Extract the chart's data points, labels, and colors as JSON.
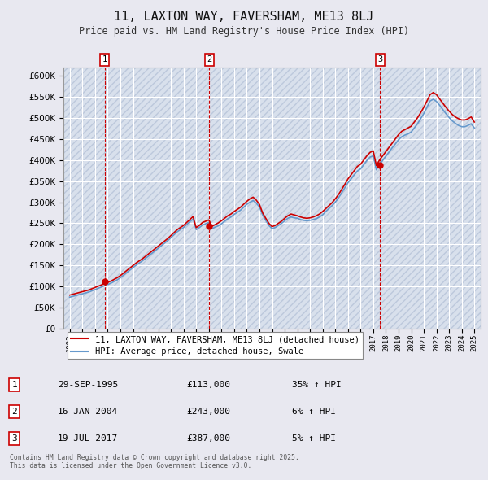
{
  "title": "11, LAXTON WAY, FAVERSHAM, ME13 8LJ",
  "subtitle": "Price paid vs. HM Land Registry's House Price Index (HPI)",
  "bg_color": "#e8e8f0",
  "plot_bg_color": "#d8e0ec",
  "grid_color": "#ffffff",
  "hatch_color": "#bcc8dc",
  "red_line_color": "#cc0000",
  "blue_line_color": "#6699cc",
  "ylim": [
    0,
    620000
  ],
  "yticks": [
    0,
    50000,
    100000,
    150000,
    200000,
    250000,
    300000,
    350000,
    400000,
    450000,
    500000,
    550000,
    600000
  ],
  "xlim_start": 1992.5,
  "xlim_end": 2025.5,
  "xticks": [
    1993,
    1994,
    1995,
    1996,
    1997,
    1998,
    1999,
    2000,
    2001,
    2002,
    2003,
    2004,
    2005,
    2006,
    2007,
    2008,
    2009,
    2010,
    2011,
    2012,
    2013,
    2014,
    2015,
    2016,
    2017,
    2018,
    2019,
    2020,
    2021,
    2022,
    2023,
    2024,
    2025
  ],
  "sale_dates": [
    1995.75,
    2004.04,
    2017.54
  ],
  "sale_prices": [
    113000,
    243000,
    387000
  ],
  "sale_labels": [
    "1",
    "2",
    "3"
  ],
  "vline_color": "#cc0000",
  "legend_items": [
    "11, LAXTON WAY, FAVERSHAM, ME13 8LJ (detached house)",
    "HPI: Average price, detached house, Swale"
  ],
  "table_rows": [
    [
      "1",
      "29-SEP-1995",
      "£113,000",
      "35% ↑ HPI"
    ],
    [
      "2",
      "16-JAN-2004",
      "£243,000",
      "6% ↑ HPI"
    ],
    [
      "3",
      "19-JUL-2017",
      "£387,000",
      "5% ↑ HPI"
    ]
  ],
  "footer": "Contains HM Land Registry data © Crown copyright and database right 2025.\nThis data is licensed under the Open Government Licence v3.0.",
  "red_hpi_x": [
    1993,
    1993.25,
    1993.5,
    1993.75,
    1994,
    1994.25,
    1994.5,
    1994.75,
    1995,
    1995.25,
    1995.5,
    1995.75,
    1996,
    1996.25,
    1996.5,
    1996.75,
    1997,
    1997.25,
    1997.5,
    1997.75,
    1998,
    1998.25,
    1998.5,
    1998.75,
    1999,
    1999.25,
    1999.5,
    1999.75,
    2000,
    2000.25,
    2000.5,
    2000.75,
    2001,
    2001.25,
    2001.5,
    2001.75,
    2002,
    2002.25,
    2002.5,
    2002.75,
    2003,
    2003.25,
    2003.5,
    2003.75,
    2004,
    2004.25,
    2004.5,
    2004.75,
    2005,
    2005.25,
    2005.5,
    2005.75,
    2006,
    2006.25,
    2006.5,
    2006.75,
    2007,
    2007.25,
    2007.5,
    2007.75,
    2008,
    2008.25,
    2008.5,
    2008.75,
    2009,
    2009.25,
    2009.5,
    2009.75,
    2010,
    2010.25,
    2010.5,
    2010.75,
    2011,
    2011.25,
    2011.5,
    2011.75,
    2012,
    2012.25,
    2012.5,
    2012.75,
    2013,
    2013.25,
    2013.5,
    2013.75,
    2014,
    2014.25,
    2014.5,
    2014.75,
    2015,
    2015.25,
    2015.5,
    2015.75,
    2016,
    2016.25,
    2016.5,
    2016.75,
    2017,
    2017.25,
    2017.5,
    2017.75,
    2018,
    2018.25,
    2018.5,
    2018.75,
    2019,
    2019.25,
    2019.5,
    2019.75,
    2020,
    2020.25,
    2020.5,
    2020.75,
    2021,
    2021.25,
    2021.5,
    2021.75,
    2022,
    2022.25,
    2022.5,
    2022.75,
    2023,
    2023.25,
    2023.5,
    2023.75,
    2024,
    2024.25,
    2024.5,
    2024.75,
    2025
  ],
  "red_hpi_y": [
    80000,
    82000,
    84000,
    86000,
    88000,
    90000,
    92000,
    95000,
    98000,
    101000,
    104000,
    107000,
    110000,
    113000,
    117000,
    121000,
    126000,
    132000,
    138000,
    144000,
    150000,
    156000,
    161000,
    166000,
    172000,
    178000,
    184000,
    190000,
    196000,
    202000,
    208000,
    214000,
    221000,
    228000,
    235000,
    240000,
    245000,
    252000,
    259000,
    266000,
    240000,
    245000,
    252000,
    255000,
    258000,
    243000,
    247000,
    251000,
    256000,
    262000,
    268000,
    272000,
    278000,
    283000,
    288000,
    295000,
    302000,
    308000,
    312000,
    305000,
    295000,
    275000,
    262000,
    250000,
    242000,
    245000,
    250000,
    255000,
    262000,
    268000,
    272000,
    270000,
    268000,
    265000,
    263000,
    262000,
    263000,
    265000,
    268000,
    272000,
    278000,
    285000,
    292000,
    299000,
    308000,
    318000,
    330000,
    342000,
    355000,
    365000,
    375000,
    385000,
    390000,
    400000,
    410000,
    418000,
    422000,
    387000,
    400000,
    410000,
    420000,
    430000,
    440000,
    450000,
    460000,
    468000,
    472000,
    476000,
    480000,
    490000,
    500000,
    512000,
    525000,
    540000,
    555000,
    560000,
    555000,
    545000,
    535000,
    525000,
    516000,
    508000,
    502000,
    498000,
    495000,
    495000,
    498000,
    502000,
    490000
  ],
  "blue_hpi_x": [
    1993,
    1993.25,
    1993.5,
    1993.75,
    1994,
    1994.25,
    1994.5,
    1994.75,
    1995,
    1995.25,
    1995.5,
    1995.75,
    1996,
    1996.25,
    1996.5,
    1996.75,
    1997,
    1997.25,
    1997.5,
    1997.75,
    1998,
    1998.25,
    1998.5,
    1998.75,
    1999,
    1999.25,
    1999.5,
    1999.75,
    2000,
    2000.25,
    2000.5,
    2000.75,
    2001,
    2001.25,
    2001.5,
    2001.75,
    2002,
    2002.25,
    2002.5,
    2002.75,
    2003,
    2003.25,
    2003.5,
    2003.75,
    2004,
    2004.25,
    2004.5,
    2004.75,
    2005,
    2005.25,
    2005.5,
    2005.75,
    2006,
    2006.25,
    2006.5,
    2006.75,
    2007,
    2007.25,
    2007.5,
    2007.75,
    2008,
    2008.25,
    2008.5,
    2008.75,
    2009,
    2009.25,
    2009.5,
    2009.75,
    2010,
    2010.25,
    2010.5,
    2010.75,
    2011,
    2011.25,
    2011.5,
    2011.75,
    2012,
    2012.25,
    2012.5,
    2012.75,
    2013,
    2013.25,
    2013.5,
    2013.75,
    2014,
    2014.25,
    2014.5,
    2014.75,
    2015,
    2015.25,
    2015.5,
    2015.75,
    2016,
    2016.25,
    2016.5,
    2016.75,
    2017,
    2017.25,
    2017.5,
    2017.75,
    2018,
    2018.25,
    2018.5,
    2018.75,
    2019,
    2019.25,
    2019.5,
    2019.75,
    2020,
    2020.25,
    2020.5,
    2020.75,
    2021,
    2021.25,
    2021.5,
    2021.75,
    2022,
    2022.25,
    2022.5,
    2022.75,
    2023,
    2023.25,
    2023.5,
    2023.75,
    2024,
    2024.25,
    2024.5,
    2024.75,
    2025
  ],
  "blue_hpi_y": [
    75000,
    77000,
    79000,
    81000,
    83000,
    85000,
    87000,
    90000,
    93000,
    96000,
    99000,
    102000,
    105000,
    108000,
    112000,
    116000,
    121000,
    127000,
    133000,
    139000,
    145000,
    151000,
    156000,
    161000,
    167000,
    173000,
    179000,
    185000,
    191000,
    197000,
    203000,
    209000,
    216000,
    223000,
    230000,
    235000,
    240000,
    247000,
    254000,
    260000,
    235000,
    240000,
    246000,
    249000,
    252000,
    237000,
    241000,
    244000,
    249000,
    255000,
    261000,
    265000,
    271000,
    276000,
    281000,
    288000,
    295000,
    300000,
    304000,
    298000,
    289000,
    270000,
    257000,
    245000,
    237000,
    240000,
    245000,
    250000,
    256000,
    262000,
    265000,
    263000,
    262000,
    259000,
    257000,
    256000,
    257000,
    259000,
    261000,
    265000,
    270000,
    278000,
    285000,
    292000,
    300000,
    310000,
    322000,
    334000,
    346000,
    355000,
    365000,
    374000,
    379000,
    389000,
    399000,
    407000,
    410000,
    377000,
    389000,
    399000,
    409000,
    419000,
    429000,
    438000,
    448000,
    455000,
    459000,
    462000,
    466000,
    476000,
    486000,
    498000,
    510000,
    525000,
    540000,
    544000,
    539000,
    530000,
    520000,
    510000,
    501000,
    493000,
    487000,
    482000,
    479000,
    479000,
    482000,
    486000,
    476000
  ]
}
